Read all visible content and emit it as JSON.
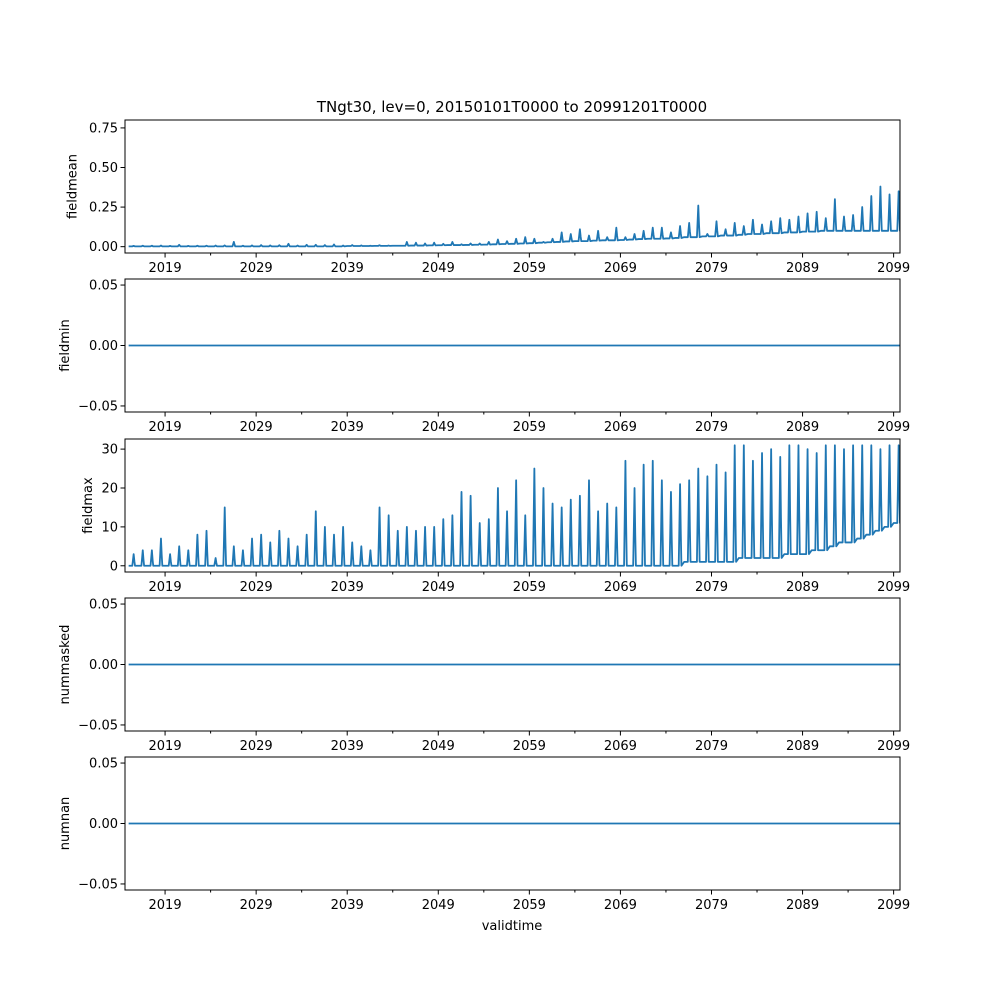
{
  "figure": {
    "title": "TNgt30, lev=0, 20150101T0000 to 20991201T0000",
    "xlabel": "validtime",
    "line_color": "#1f77b4"
  },
  "chart_data": [
    {
      "type": "line",
      "name": "fieldmean",
      "ylabel": "fieldmean",
      "xlim": [
        2014.6,
        2099.7
      ],
      "ylim": [
        -0.04,
        0.8
      ],
      "xticks": [
        2019,
        2029,
        2039,
        2049,
        2059,
        2069,
        2079,
        2089,
        2099
      ],
      "xtick_labels": [
        "2019",
        "2029",
        "2039",
        "2049",
        "2059",
        "2069",
        "2079",
        "2089",
        "2099"
      ],
      "yticks": [
        0,
        0.25,
        0.5,
        0.75
      ],
      "ytick_labels": [
        "0.00",
        "0.25",
        "0.50",
        "0.75"
      ],
      "series": [
        {
          "name": "fieldmean",
          "x_start": 2015.0,
          "x_step": 1.0,
          "peak_month": 0.55,
          "baseline": [
            0.002,
            0.002,
            0.002,
            0.002,
            0.002,
            0.002,
            0.002,
            0.002,
            0.002,
            0.002,
            0.002,
            0.002,
            0.002,
            0.002,
            0.002,
            0.002,
            0.002,
            0.002,
            0.002,
            0.002,
            0.002,
            0.002,
            0.002,
            0.002,
            0.004,
            0.004,
            0.004,
            0.005,
            0.005,
            0.006,
            0.006,
            0.007,
            0.007,
            0.008,
            0.009,
            0.01,
            0.01,
            0.011,
            0.012,
            0.013,
            0.015,
            0.017,
            0.018,
            0.02,
            0.022,
            0.025,
            0.028,
            0.03,
            0.033,
            0.035,
            0.035,
            0.038,
            0.04,
            0.04,
            0.042,
            0.045,
            0.048,
            0.05,
            0.05,
            0.052,
            0.055,
            0.06,
            0.06,
            0.065,
            0.065,
            0.07,
            0.07,
            0.075,
            0.08,
            0.08,
            0.085,
            0.085,
            0.09,
            0.09,
            0.095,
            0.095,
            0.1,
            0.1,
            0.1,
            0.1,
            0.1,
            0.1,
            0.1,
            0.1,
            0.1
          ],
          "peaks": [
            0.005,
            0.006,
            0.006,
            0.007,
            0.005,
            0.012,
            0.005,
            0.006,
            0.006,
            0.007,
            0.008,
            0.03,
            0.006,
            0.008,
            0.01,
            0.008,
            0.009,
            0.018,
            0.007,
            0.012,
            0.012,
            0.01,
            0.014,
            0.007,
            0.01,
            0.008,
            0.006,
            0.009,
            0.007,
            0.006,
            0.03,
            0.025,
            0.02,
            0.025,
            0.018,
            0.03,
            0.015,
            0.02,
            0.02,
            0.03,
            0.045,
            0.035,
            0.05,
            0.06,
            0.05,
            0.03,
            0.05,
            0.09,
            0.08,
            0.11,
            0.07,
            0.1,
            0.06,
            0.12,
            0.06,
            0.08,
            0.1,
            0.12,
            0.12,
            0.09,
            0.13,
            0.15,
            0.26,
            0.08,
            0.16,
            0.11,
            0.15,
            0.13,
            0.17,
            0.14,
            0.16,
            0.18,
            0.17,
            0.19,
            0.21,
            0.22,
            0.18,
            0.3,
            0.19,
            0.2,
            0.25,
            0.32,
            0.38,
            0.33,
            0.35
          ]
        }
      ]
    },
    {
      "type": "line",
      "name": "fieldmin",
      "ylabel": "fieldmin",
      "xlim": [
        2014.6,
        2099.7
      ],
      "ylim": [
        -0.055,
        0.055
      ],
      "xticks": [
        2019,
        2029,
        2039,
        2049,
        2059,
        2069,
        2079,
        2089,
        2099
      ],
      "xtick_labels": [
        "2019",
        "2029",
        "2039",
        "2049",
        "2059",
        "2069",
        "2079",
        "2089",
        "2099"
      ],
      "yticks": [
        -0.05,
        0,
        0.05
      ],
      "ytick_labels": [
        "−0.05",
        "0.00",
        "0.05"
      ],
      "series": [
        {
          "name": "fieldmin",
          "x": [
            2015.0,
            2099.92
          ],
          "y": [
            0,
            0
          ]
        }
      ]
    },
    {
      "type": "line",
      "name": "fieldmax",
      "ylabel": "fieldmax",
      "xlim": [
        2014.6,
        2099.7
      ],
      "ylim": [
        -1.6,
        32.6
      ],
      "xticks": [
        2019,
        2029,
        2039,
        2049,
        2059,
        2069,
        2079,
        2089,
        2099
      ],
      "xtick_labels": [
        "2019",
        "2029",
        "2039",
        "2049",
        "2059",
        "2069",
        "2079",
        "2089",
        "2099"
      ],
      "yticks": [
        0,
        10,
        20,
        30
      ],
      "ytick_labels": [
        "0",
        "10",
        "20",
        "30"
      ],
      "series": [
        {
          "name": "fieldmax",
          "x_start": 2015.0,
          "x_step": 1.0,
          "peak_month": 0.55,
          "baseline": [
            0,
            0,
            0,
            0,
            0,
            0,
            0,
            0,
            0,
            0,
            0,
            0,
            0,
            0,
            0,
            0,
            0,
            0,
            0,
            0,
            0,
            0,
            0,
            0,
            0,
            0,
            0,
            0,
            0,
            0,
            0,
            0,
            0,
            0,
            0,
            0,
            0,
            0,
            0,
            0,
            0,
            0,
            0,
            0,
            0,
            0,
            0,
            0,
            0,
            0,
            0,
            0,
            0,
            0,
            0,
            0,
            0,
            0,
            0,
            0,
            0,
            1,
            1,
            1,
            1,
            1,
            1,
            2,
            2,
            2,
            2,
            2,
            3,
            3,
            3,
            4,
            4,
            5,
            6,
            6,
            7,
            8,
            9,
            10,
            11
          ],
          "peaks": [
            3,
            4,
            4,
            7,
            3,
            5,
            4,
            8,
            9,
            2,
            15,
            5,
            4,
            7,
            8,
            6,
            9,
            7,
            5,
            8,
            14,
            10,
            8,
            10,
            6,
            5,
            4,
            15,
            13,
            9,
            10,
            9,
            10,
            10,
            12,
            13,
            19,
            18,
            11,
            12,
            20,
            14,
            22,
            13,
            25,
            20,
            16,
            15,
            17,
            18,
            22,
            14,
            16,
            15,
            27,
            20,
            26,
            27,
            22,
            19,
            21,
            22,
            25,
            23,
            26,
            24,
            31,
            31,
            27,
            29,
            30,
            28,
            31,
            31,
            30,
            29,
            31,
            31,
            30,
            31,
            31,
            31,
            30,
            31,
            31
          ]
        }
      ]
    },
    {
      "type": "line",
      "name": "nummasked",
      "ylabel": "nummasked",
      "xlim": [
        2014.6,
        2099.7
      ],
      "ylim": [
        -0.055,
        0.055
      ],
      "xticks": [
        2019,
        2029,
        2039,
        2049,
        2059,
        2069,
        2079,
        2089,
        2099
      ],
      "xtick_labels": [
        "2019",
        "2029",
        "2039",
        "2049",
        "2059",
        "2069",
        "2079",
        "2089",
        "2099"
      ],
      "yticks": [
        -0.05,
        0,
        0.05
      ],
      "ytick_labels": [
        "−0.05",
        "0.00",
        "0.05"
      ],
      "series": [
        {
          "name": "nummasked",
          "x": [
            2015.0,
            2099.92
          ],
          "y": [
            0,
            0
          ]
        }
      ]
    },
    {
      "type": "line",
      "name": "numnan",
      "ylabel": "numnan",
      "xlabel": "validtime",
      "xlim": [
        2014.6,
        2099.7
      ],
      "ylim": [
        -0.055,
        0.055
      ],
      "xticks": [
        2019,
        2029,
        2039,
        2049,
        2059,
        2069,
        2079,
        2089,
        2099
      ],
      "xtick_labels": [
        "2019",
        "2029",
        "2039",
        "2049",
        "2059",
        "2069",
        "2079",
        "2089",
        "2099"
      ],
      "yticks": [
        -0.05,
        0,
        0.05
      ],
      "ytick_labels": [
        "−0.05",
        "0.00",
        "0.05"
      ],
      "series": [
        {
          "name": "numnan",
          "x": [
            2015.0,
            2099.92
          ],
          "y": [
            0,
            0
          ]
        }
      ]
    }
  ]
}
